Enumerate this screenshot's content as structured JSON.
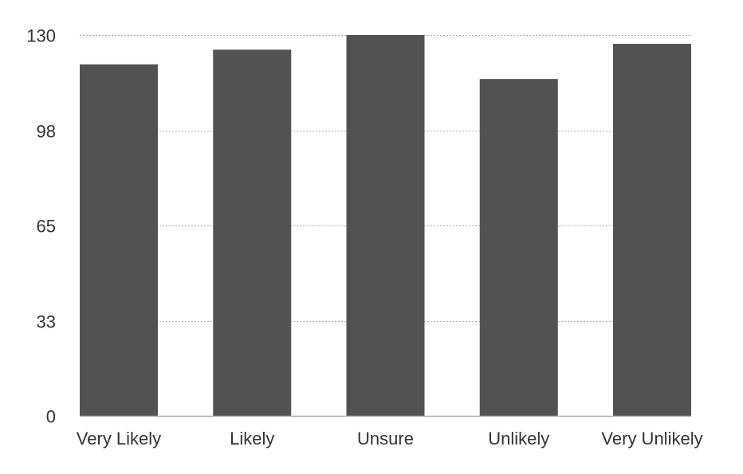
{
  "chart_data": {
    "type": "bar",
    "categories": [
      "Very Likely",
      "Likely",
      "Unsure",
      "Unlikely",
      "Very Unlikely"
    ],
    "values": [
      120,
      125,
      130,
      115,
      127
    ],
    "yticks": [
      "0",
      "33",
      "65",
      "98",
      "130"
    ],
    "ytick_values": [
      0,
      32.5,
      65,
      97.5,
      130
    ],
    "ylim": [
      0,
      130
    ],
    "grid": true,
    "bar_color": "#525252",
    "grid_color": "#b0b0b0"
  }
}
